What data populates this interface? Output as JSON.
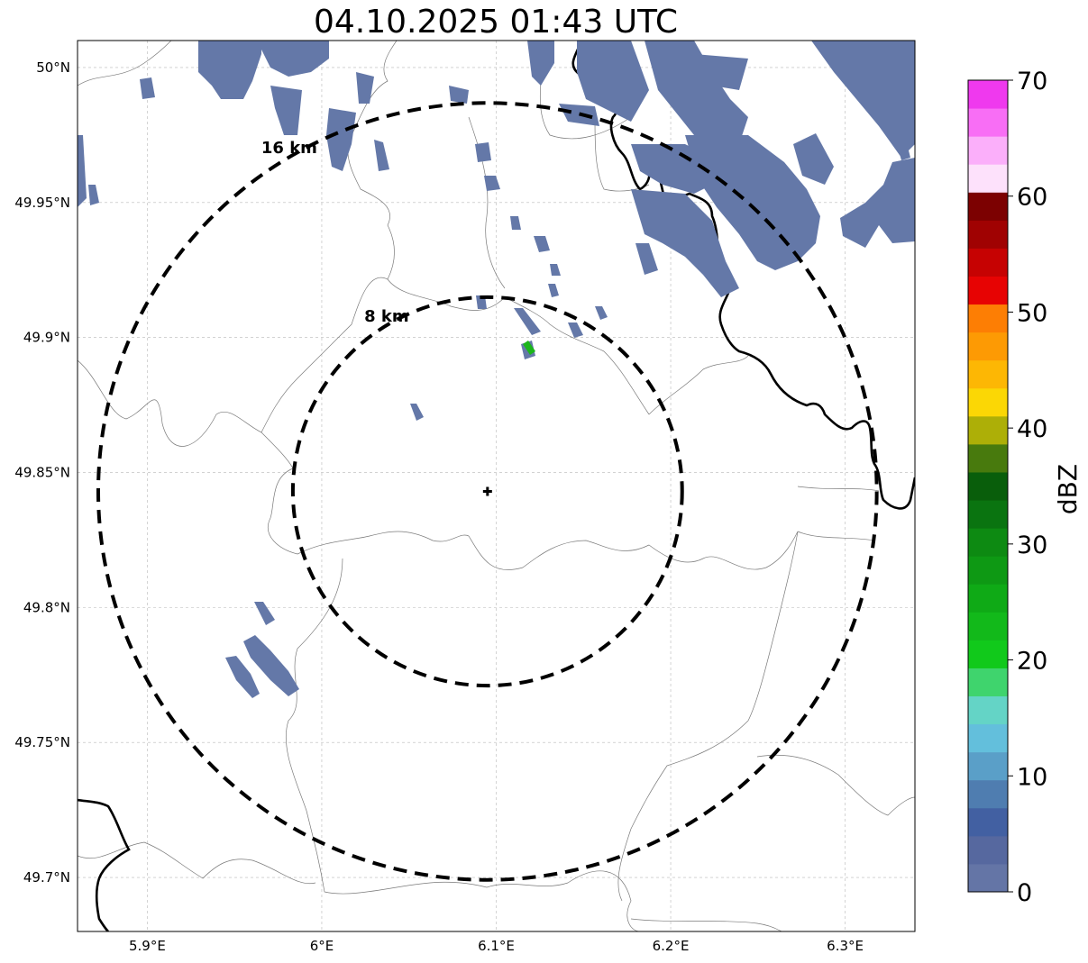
{
  "title": "04.10.2025 01:43 UTC",
  "map": {
    "lon_range": [
      5.86,
      6.34
    ],
    "lat_range": [
      49.68,
      50.01
    ],
    "lon_ticks": [
      {
        "value": 5.9,
        "label": "5.9°E"
      },
      {
        "value": 6.0,
        "label": "6°E"
      },
      {
        "value": 6.1,
        "label": "6.1°E"
      },
      {
        "value": 6.2,
        "label": "6.2°E"
      },
      {
        "value": 6.3,
        "label": "6.3°E"
      }
    ],
    "lat_ticks": [
      {
        "value": 50.0,
        "label": "50°N"
      },
      {
        "value": 49.95,
        "label": "49.95°N"
      },
      {
        "value": 49.9,
        "label": "49.9°N"
      },
      {
        "value": 49.85,
        "label": "49.85°N"
      },
      {
        "value": 49.8,
        "label": "49.8°N"
      },
      {
        "value": 49.75,
        "label": "49.75°N"
      },
      {
        "value": 49.7,
        "label": "49.7°N"
      }
    ],
    "radar_site": {
      "lon": 6.095,
      "lat": 49.843
    },
    "range_rings": [
      {
        "radius_km": 8,
        "label": "8 km"
      },
      {
        "radius_km": 16,
        "label": "16 km"
      }
    ],
    "echo_color": "#6478a8",
    "strong_echo_color": "#1bb51b"
  },
  "colorbar": {
    "label": "dBZ",
    "ticks": [
      "0",
      "10",
      "20",
      "30",
      "40",
      "50",
      "60",
      "70"
    ],
    "colors": [
      "#6475a6",
      "#56689f",
      "#4260a2",
      "#4f7db0",
      "#5a9fc8",
      "#63bfdc",
      "#64d4c6",
      "#3fd46d",
      "#11c91b",
      "#12b91a",
      "#0faa16",
      "#0e9914",
      "#0d8a12",
      "#0a7410",
      "#095e0b",
      "#487a0d",
      "#adaf07",
      "#fbd705",
      "#fdb704",
      "#fd9a04",
      "#fd7e04",
      "#e70303",
      "#c60202",
      "#a00202",
      "#7c0101",
      "#fde1fb",
      "#fbaffa",
      "#f86ef5",
      "#ef39ee"
    ]
  }
}
